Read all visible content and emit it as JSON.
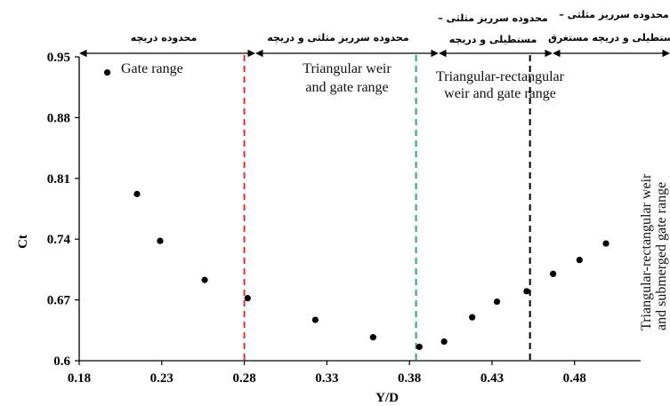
{
  "chart_data": {
    "type": "scatter",
    "title": "",
    "xlabel": "Y/D",
    "ylabel": "Ct",
    "xlim": [
      0.18,
      0.52
    ],
    "ylim": [
      0.6,
      0.95
    ],
    "xticks": [
      "0.18",
      "0.23",
      "0.28",
      "0.33",
      "0.38",
      "0.43",
      "0.48"
    ],
    "yticks": [
      "0.95",
      "0.88",
      "0.81",
      "0.74",
      "0.67",
      "0.6"
    ],
    "grid": false,
    "series": [
      {
        "x": [
          0.197,
          0.215,
          0.229,
          0.256,
          0.282,
          0.323,
          0.358,
          0.386,
          0.401,
          0.418,
          0.433,
          0.451,
          0.467,
          0.483,
          0.499
        ],
        "y": [
          0.932,
          0.792,
          0.738,
          0.693,
          0.672,
          0.647,
          0.627,
          0.616,
          0.622,
          0.65,
          0.668,
          0.68,
          0.7,
          0.716,
          0.735
        ]
      }
    ],
    "dividers": [
      {
        "x": 0.28,
        "color": "#e03030"
      },
      {
        "x": 0.384,
        "color": "#2aa870"
      },
      {
        "x": 0.453,
        "color": "#000000"
      }
    ],
    "regions": [
      {
        "label_fa": "محدوده دریچه",
        "label_en": "Gate range"
      },
      {
        "label_fa": "محدوده سرریز مثلثی و دریچه",
        "label_en": "Triangular weir",
        "label_en_2": "and gate range"
      },
      {
        "label_fa": "محدوده سرریز مثلثی –",
        "label_fa_2": "مستطیلی و دریچه",
        "label_en": "Triangular-rectangular",
        "label_en_2": "weir and gate range"
      },
      {
        "label_fa": "محدوده سرریز مثلثی –",
        "label_fa_2": "مستطیلی و دریچه مستغرق",
        "label_en": "Triangular-rectangular weir",
        "label_en_2": "and submerged gate range"
      }
    ]
  }
}
